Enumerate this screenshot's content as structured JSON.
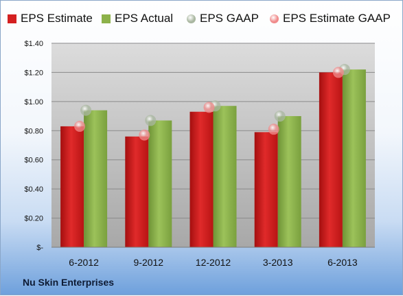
{
  "legend": [
    {
      "label": "EPS Estimate",
      "color": "#d42020",
      "marker": "square"
    },
    {
      "label": "EPS Actual",
      "color": "#8db24a",
      "marker": "square"
    },
    {
      "label": "EPS GAAP",
      "color": "#a9b7a0",
      "marker": "circle"
    },
    {
      "label": "EPS Estimate GAAP",
      "color": "#f08a8a",
      "marker": "circle"
    }
  ],
  "company": "Nu Skin Enterprises",
  "chart_data": {
    "type": "bar",
    "categories": [
      "6-2012",
      "9-2012",
      "12-2012",
      "3-2013",
      "6-2013"
    ],
    "series": [
      {
        "name": "EPS Estimate",
        "values": [
          0.83,
          0.76,
          0.93,
          0.79,
          1.2
        ],
        "color": "#d42020",
        "kind": "bar"
      },
      {
        "name": "EPS Actual",
        "values": [
          0.94,
          0.87,
          0.97,
          0.9,
          1.22
        ],
        "color": "#8db24a",
        "kind": "bar"
      },
      {
        "name": "EPS GAAP",
        "values": [
          0.94,
          0.87,
          0.97,
          0.9,
          1.22
        ],
        "color": "#a9b7a0",
        "kind": "point"
      },
      {
        "name": "EPS Estimate GAAP",
        "values": [
          0.83,
          0.77,
          0.96,
          0.81,
          1.2
        ],
        "color": "#f08a8a",
        "kind": "point"
      }
    ],
    "y_ticks": [
      0,
      0.2,
      0.4,
      0.6,
      0.8,
      1.0,
      1.2,
      1.4
    ],
    "y_tick_labels": [
      "$-",
      "$0.20",
      "$0.40",
      "$0.60",
      "$0.80",
      "$1.00",
      "$1.20",
      "$1.40"
    ],
    "ylim": [
      0,
      1.4
    ],
    "grid": true,
    "legend_position": "top"
  }
}
